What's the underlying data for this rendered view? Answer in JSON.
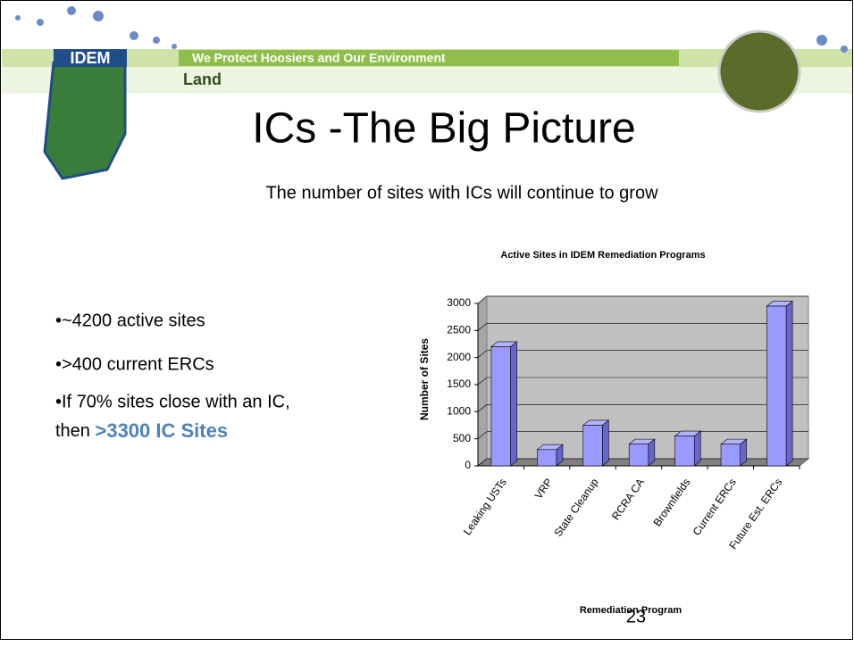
{
  "header": {
    "logo": "IDEM",
    "tagline": "We Protect Hoosiers and Our Environment",
    "section": "Land"
  },
  "title": "ICs -The Big Picture",
  "subtitle": "The number of sites with ICs will continue to grow",
  "bullets": [
    "•~4200 active sites",
    "•>400 current ERCs",
    "•If 70% sites close with an IC,"
  ],
  "bullet_tail": {
    "text": "then ",
    "highlight": ">3300 IC Sites"
  },
  "page_number": "23",
  "chart_data": {
    "type": "bar",
    "title": "Active Sites in IDEM Remediation Programs",
    "x_label": "Remediation Program",
    "y_label": "Number of Sites",
    "categories": [
      "Leaking USTs",
      "VRP",
      "State Cleanup",
      "RCRA CA",
      "Brownfields",
      "Current ERCs",
      "Future Est. ERCs"
    ],
    "values": [
      2200,
      300,
      750,
      400,
      550,
      400,
      2950
    ],
    "color": "#9999ff",
    "ylim": [
      0,
      3000
    ],
    "yticks": [
      0,
      500,
      1000,
      1500,
      2000,
      2500,
      3000
    ],
    "grid": true
  }
}
